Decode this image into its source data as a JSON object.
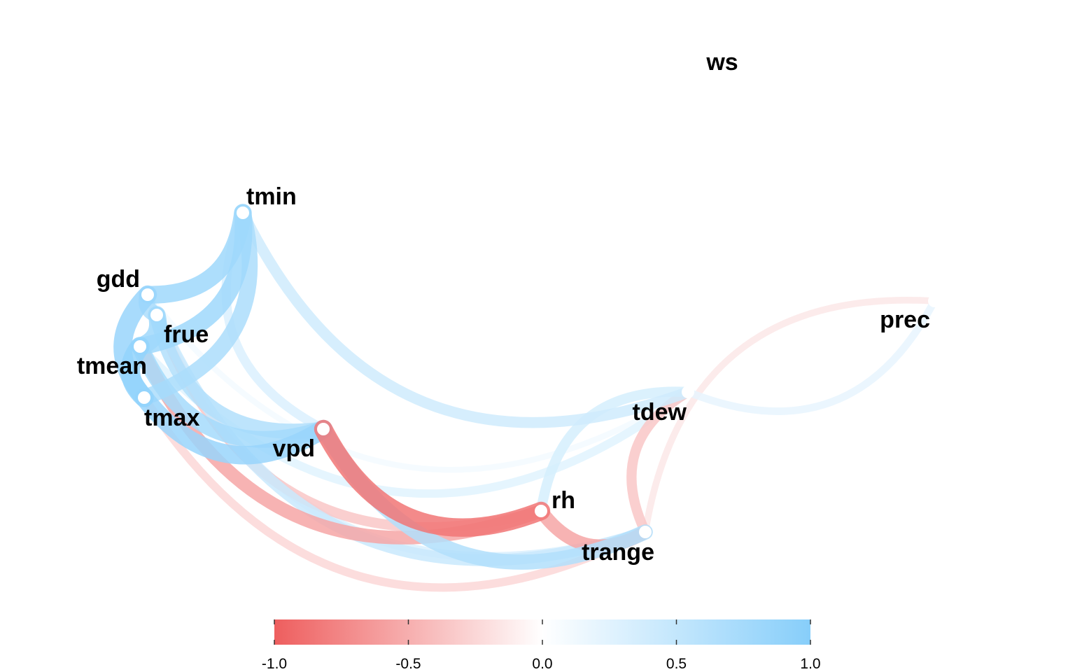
{
  "chart_data": {
    "type": "network",
    "nodes": [
      {
        "id": "ws",
        "label": "ws"
      },
      {
        "id": "tmin",
        "label": "tmin"
      },
      {
        "id": "gdd",
        "label": "gdd"
      },
      {
        "id": "frue",
        "label": "frue"
      },
      {
        "id": "tmean",
        "label": "tmean"
      },
      {
        "id": "tmax",
        "label": "tmax"
      },
      {
        "id": "vpd",
        "label": "vpd"
      },
      {
        "id": "tdew",
        "label": "tdew"
      },
      {
        "id": "prec",
        "label": "prec"
      },
      {
        "id": "rh",
        "label": "rh"
      },
      {
        "id": "trange",
        "label": "trange"
      }
    ],
    "edges": [
      {
        "source": "tmin",
        "target": "tdew",
        "r": 0.4
      },
      {
        "source": "tdew",
        "target": "prec",
        "r": 0.2
      },
      {
        "source": "prec",
        "target": "trange",
        "r": -0.15
      },
      {
        "source": "tmax",
        "target": "vpd",
        "r": 0.85
      },
      {
        "source": "tmean",
        "target": "vpd",
        "r": 0.75
      },
      {
        "source": "tmin",
        "target": "vpd",
        "r": 0.3
      },
      {
        "source": "vpd",
        "target": "rh",
        "r": -0.85
      },
      {
        "source": "vpd",
        "target": "trange",
        "r": 0.65
      },
      {
        "source": "rh",
        "target": "trange",
        "r": -0.55
      },
      {
        "source": "tmean",
        "target": "rh",
        "r": -0.55
      },
      {
        "source": "frue",
        "target": "rh",
        "r": -0.35
      },
      {
        "source": "tmax",
        "target": "trange",
        "r": -0.25
      },
      {
        "source": "tdew",
        "target": "trange",
        "r": -0.35
      },
      {
        "source": "tdew",
        "target": "rh",
        "r": 0.35
      },
      {
        "source": "gdd",
        "target": "tdew",
        "r": 0.1
      },
      {
        "source": "frue",
        "target": "trange",
        "r": 0.45
      },
      {
        "source": "gdd",
        "target": "trange",
        "r": 0.3
      },
      {
        "source": "tmean",
        "target": "tdew",
        "r": 0.25
      },
      {
        "source": "gdd",
        "target": "tmin",
        "r": 0.8
      },
      {
        "source": "tmean",
        "target": "tmin",
        "r": 0.8
      },
      {
        "source": "tmax",
        "target": "tmin",
        "r": 0.7
      },
      {
        "source": "gdd",
        "target": "tmax",
        "r": 0.85
      },
      {
        "source": "tmean",
        "target": "tmax",
        "r": 0.9
      },
      {
        "source": "frue",
        "target": "vpd",
        "r": 0.65
      },
      {
        "source": "gdd",
        "target": "frue",
        "r": 0.7
      },
      {
        "source": "tmean",
        "target": "frue",
        "r": 0.8
      }
    ],
    "color_scale": {
      "min": -1.0,
      "max": 1.0,
      "low_color": "#EE5E5E",
      "mid_color": "#FFFFFF",
      "high_color": "#87CEFA"
    },
    "legend": {
      "position": "bottom",
      "ticks": [
        "-1.0",
        "-0.5",
        "0.0",
        "0.5",
        "1.0"
      ]
    }
  }
}
